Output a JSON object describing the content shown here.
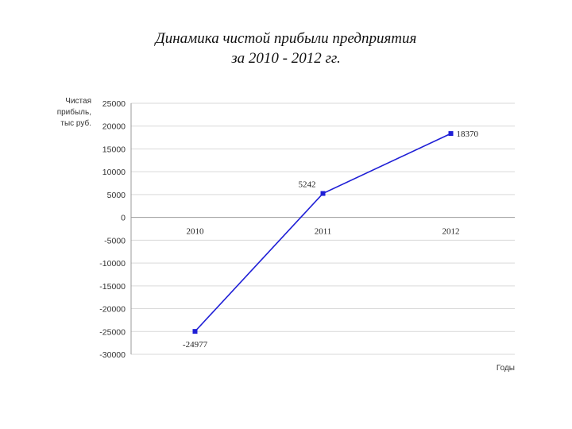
{
  "slide": {
    "title_line1": "Динамика чистой прибыли предприятия",
    "title_line2": "за 2010 - 2012 гг."
  },
  "chart_data": {
    "type": "line",
    "categories": [
      "2010",
      "2011",
      "2012"
    ],
    "series": [
      {
        "values": [
          -24977,
          5242,
          18370
        ]
      }
    ],
    "data_labels": [
      "-24977",
      "5242",
      "18370"
    ],
    "ylabel_lines": [
      "Чистая",
      "прибыль,",
      "тыс руб."
    ],
    "xlabel": "Годы",
    "ylim": [
      -30000,
      25000
    ],
    "yticks": [
      25000,
      20000,
      15000,
      10000,
      5000,
      0,
      -5000,
      -10000,
      -15000,
      -20000,
      -25000,
      -30000
    ],
    "grid": true,
    "line_color": "#1f1fd6",
    "grid_color": "#d9d9d9",
    "legend": false
  }
}
